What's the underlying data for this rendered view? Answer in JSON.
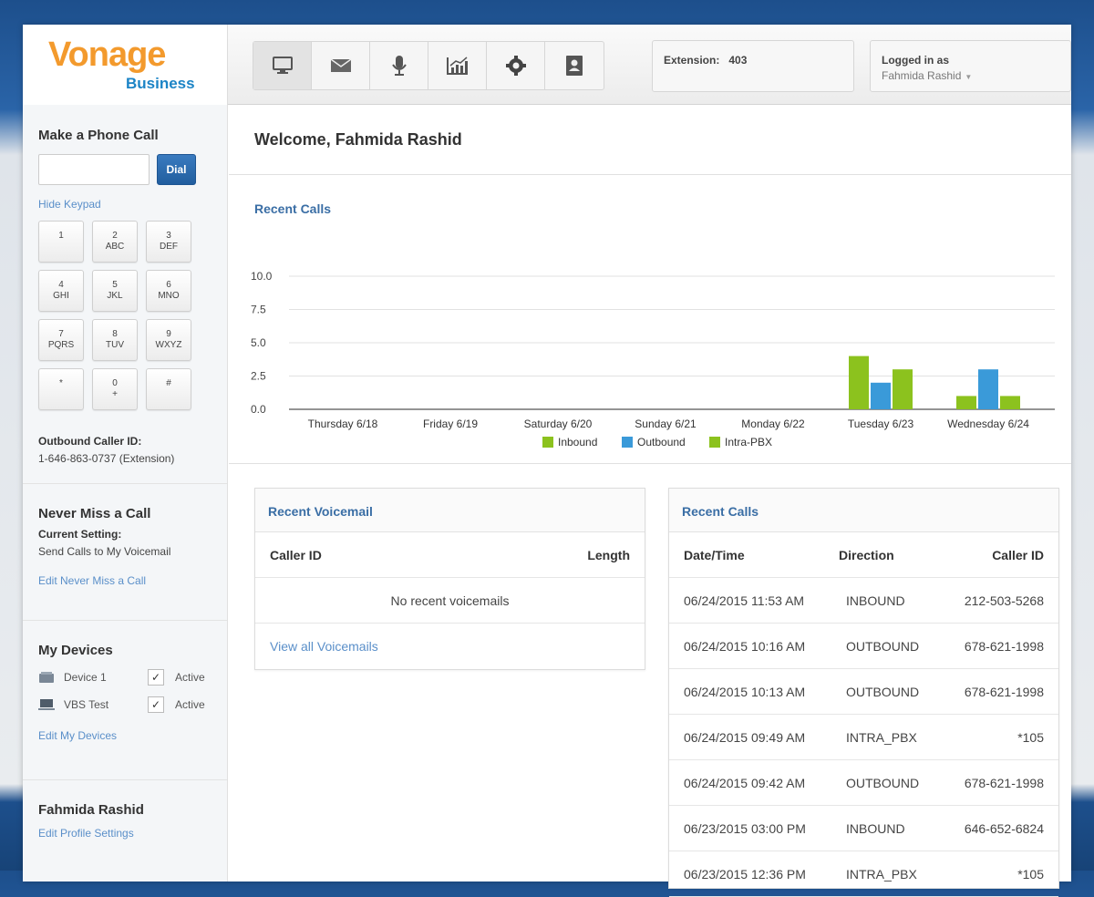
{
  "brand": {
    "logo": "Vonage",
    "sub": "Business"
  },
  "nav": [
    {
      "icon": "desktop-icon"
    },
    {
      "icon": "envelope-icon"
    },
    {
      "icon": "microphone-icon"
    },
    {
      "icon": "chart-icon"
    },
    {
      "icon": "gear-icon"
    },
    {
      "icon": "contacts-icon"
    }
  ],
  "header": {
    "extension_label": "Extension:",
    "extension_value": "403",
    "logged_in_label": "Logged in as",
    "user_name": "Fahmida Rashid"
  },
  "sidebar": {
    "make_call_title": "Make a Phone Call",
    "dial_label": "Dial",
    "hide_keypad": "Hide Keypad",
    "keys": [
      {
        "digit": "1",
        "letters": ""
      },
      {
        "digit": "2",
        "letters": "ABC"
      },
      {
        "digit": "3",
        "letters": "DEF"
      },
      {
        "digit": "4",
        "letters": "GHI"
      },
      {
        "digit": "5",
        "letters": "JKL"
      },
      {
        "digit": "6",
        "letters": "MNO"
      },
      {
        "digit": "7",
        "letters": "PQRS"
      },
      {
        "digit": "8",
        "letters": "TUV"
      },
      {
        "digit": "9",
        "letters": "WXYZ"
      },
      {
        "digit": "*",
        "letters": ""
      },
      {
        "digit": "0",
        "letters": "+"
      },
      {
        "digit": "#",
        "letters": ""
      }
    ],
    "outbound_label": "Outbound Caller ID:",
    "outbound_value": "1-646-863-0737 (Extension)",
    "never_miss_title": "Never Miss a Call",
    "current_setting_label": "Current Setting:",
    "current_setting_value": "Send Calls to My Voicemail",
    "edit_never_miss": "Edit Never Miss a Call",
    "devices_title": "My Devices",
    "devices": [
      {
        "name": "Device 1",
        "status": "Active",
        "checked": "✓"
      },
      {
        "name": "VBS Test",
        "status": "Active",
        "checked": "✓"
      }
    ],
    "edit_devices": "Edit My Devices",
    "profile_name": "Fahmida Rashid",
    "edit_profile": "Edit Profile Settings"
  },
  "main": {
    "welcome": "Welcome, Fahmida Rashid",
    "chart_title": "Recent Calls"
  },
  "chart_data": {
    "type": "bar",
    "title": "Recent Calls",
    "categories": [
      "Thursday 6/18",
      "Friday 6/19",
      "Saturday 6/20",
      "Sunday 6/21",
      "Monday 6/22",
      "Tuesday 6/23",
      "Wednesday 6/24"
    ],
    "series": [
      {
        "name": "Inbound",
        "color": "#8cc21e",
        "values": [
          0,
          0,
          0,
          0,
          0,
          4,
          1
        ]
      },
      {
        "name": "Outbound",
        "color": "#3a9ad9",
        "values": [
          0,
          0,
          0,
          0,
          0,
          2,
          3
        ]
      },
      {
        "name": "Intra-PBX",
        "color": "#8cc21e",
        "values": [
          0,
          0,
          0,
          0,
          0,
          3,
          1
        ]
      }
    ],
    "yticks": [
      "10.0",
      "7.5",
      "5.0",
      "2.5",
      "0.0"
    ],
    "ylim": [
      0,
      10
    ],
    "grid": true,
    "legend": "bottom"
  },
  "voicemail": {
    "title": "Recent Voicemail",
    "col_caller": "Caller ID",
    "col_length": "Length",
    "empty": "No recent voicemails",
    "view_all": "View all Voicemails"
  },
  "recent_calls": {
    "title": "Recent Calls",
    "col_date": "Date/Time",
    "col_direction": "Direction",
    "col_caller": "Caller ID",
    "rows": [
      {
        "date": "06/24/2015 11:53 AM",
        "direction": "INBOUND",
        "caller": "212-503-5268"
      },
      {
        "date": "06/24/2015 10:16 AM",
        "direction": "OUTBOUND",
        "caller": "678-621-1998"
      },
      {
        "date": "06/24/2015 10:13 AM",
        "direction": "OUTBOUND",
        "caller": "678-621-1998"
      },
      {
        "date": "06/24/2015 09:49 AM",
        "direction": "INTRA_PBX",
        "caller": "*105"
      },
      {
        "date": "06/24/2015 09:42 AM",
        "direction": "OUTBOUND",
        "caller": "678-621-1998"
      },
      {
        "date": "06/23/2015 03:00 PM",
        "direction": "INBOUND",
        "caller": "646-652-6824"
      },
      {
        "date": "06/23/2015 12:36 PM",
        "direction": "INTRA_PBX",
        "caller": "*105"
      }
    ]
  }
}
